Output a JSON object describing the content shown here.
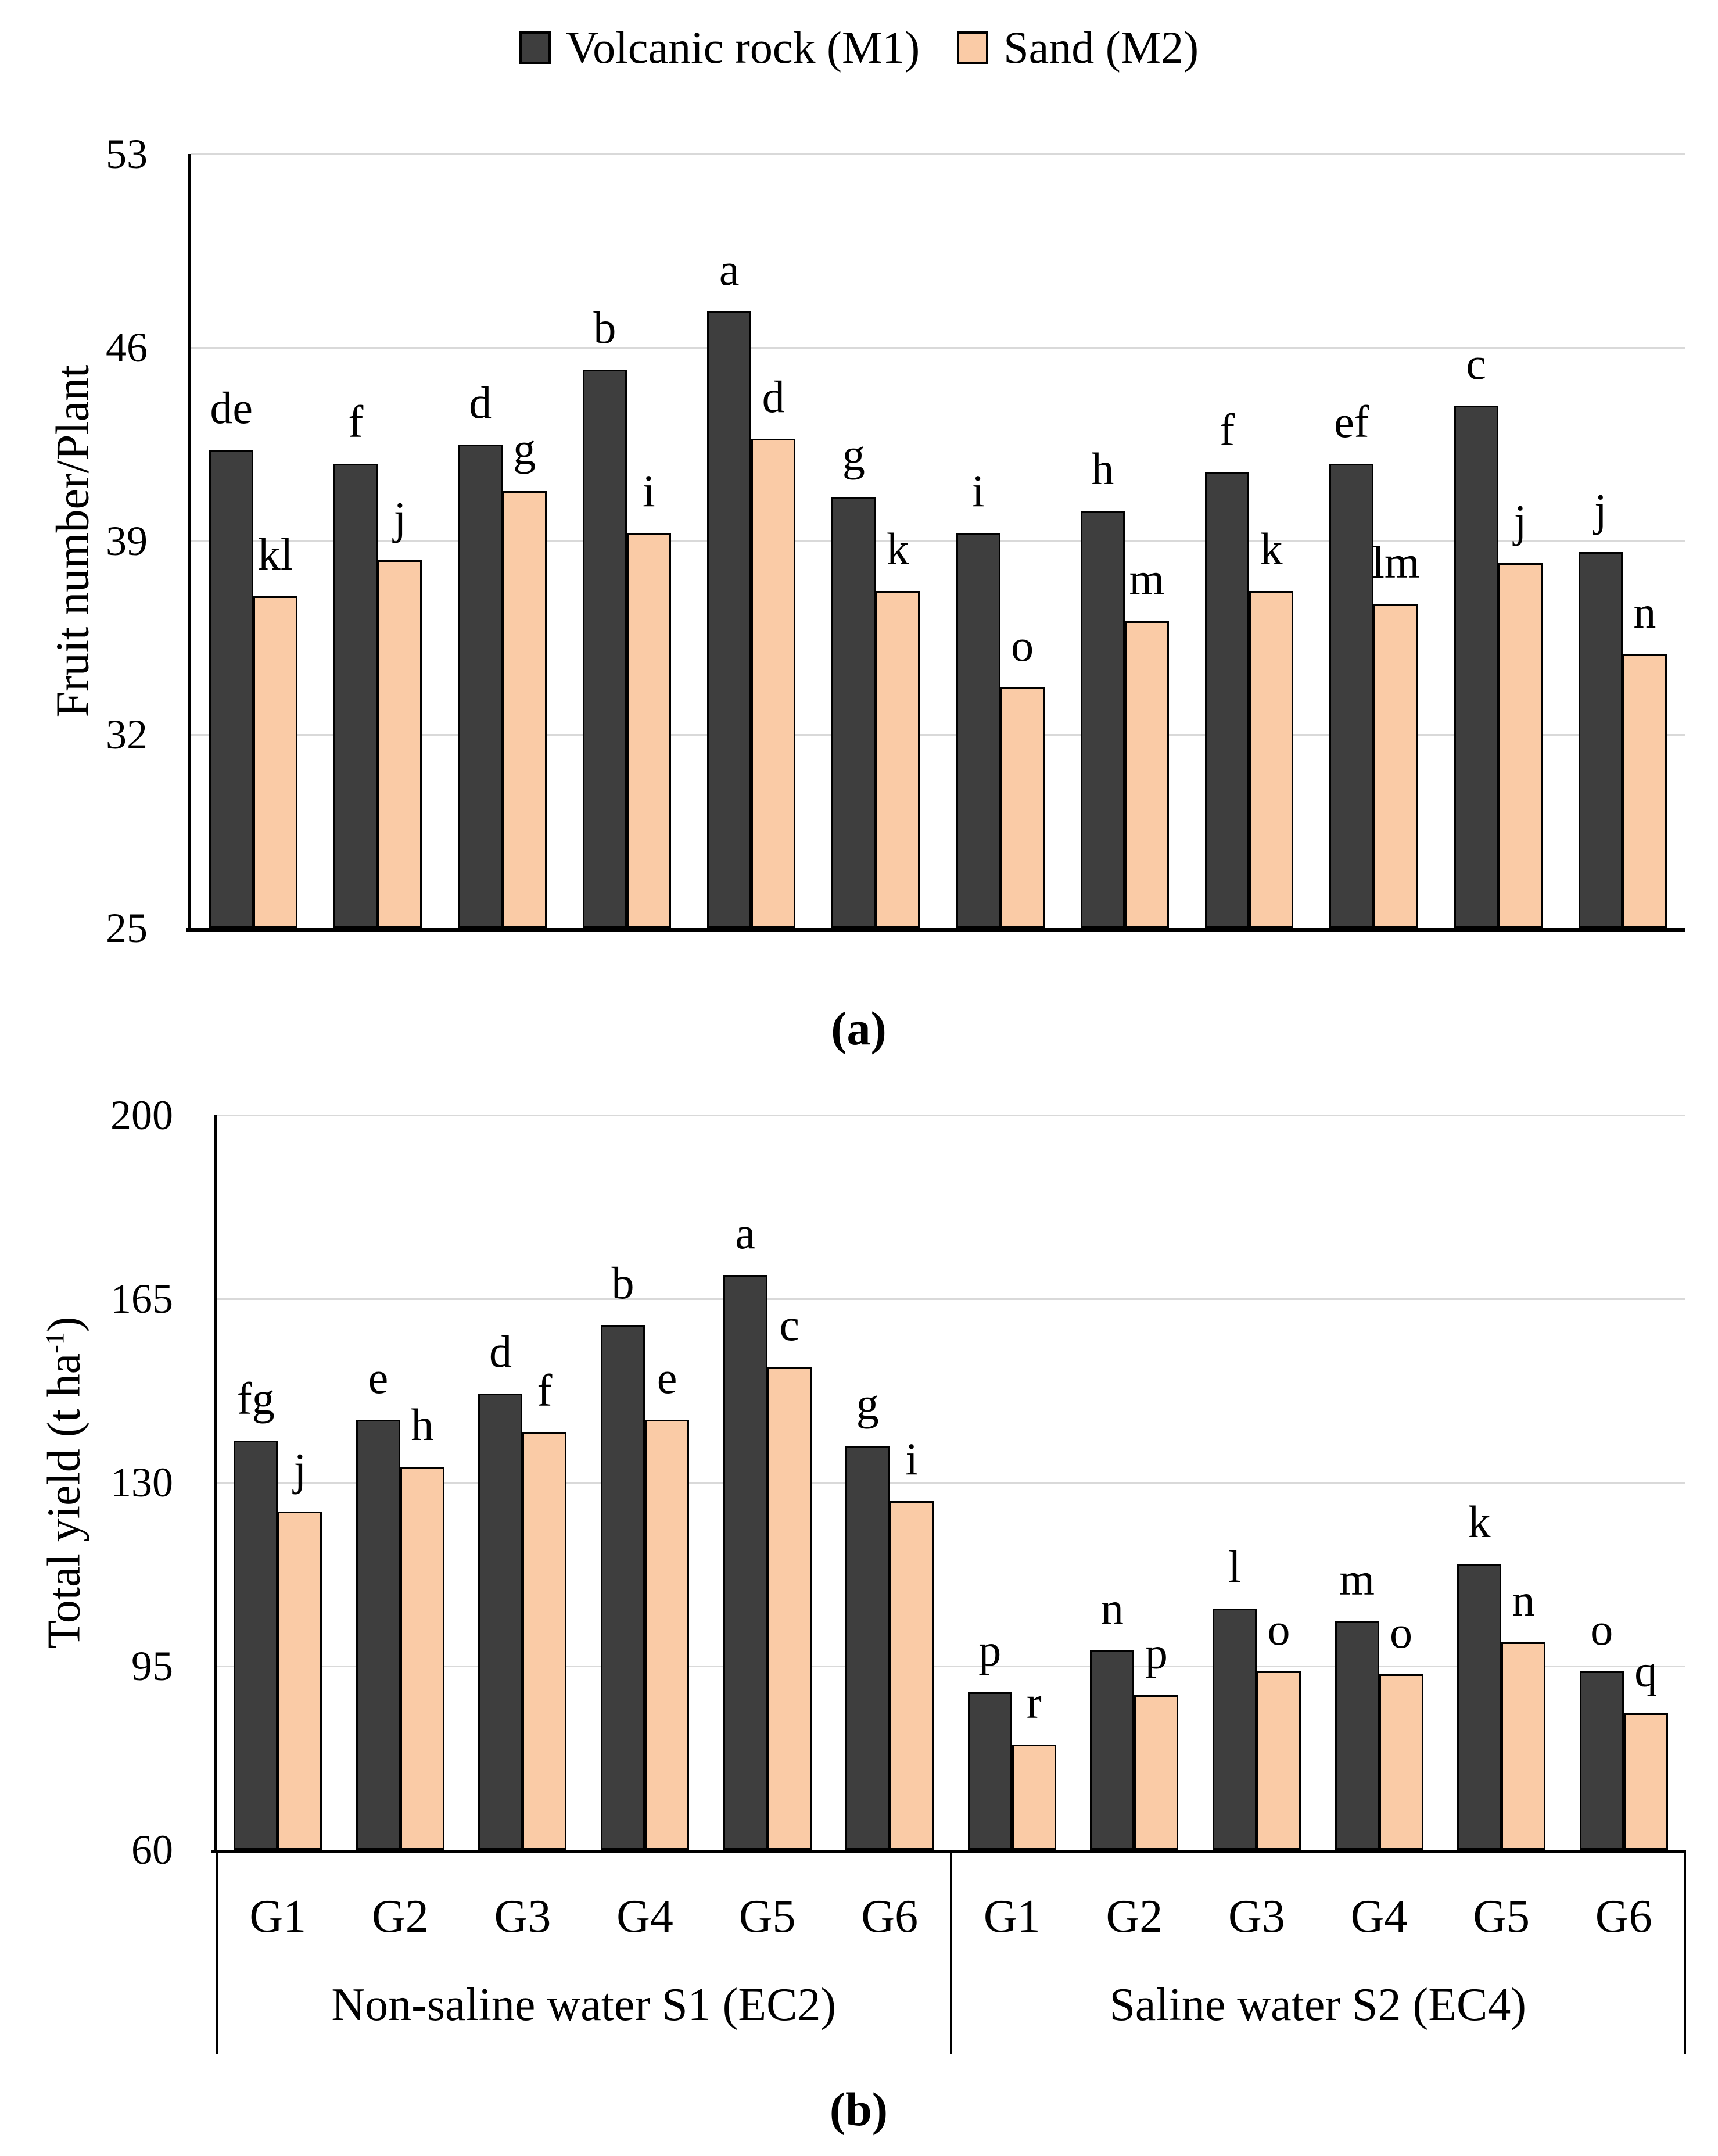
{
  "legend": {
    "items": [
      {
        "label": "Volcanic rock (M1)",
        "swatch_color": "#3E3E3E"
      },
      {
        "label": "Sand (M2)",
        "swatch_color": "#FACBA6"
      }
    ]
  },
  "captions": {
    "a": "(a)",
    "b": "(b)"
  },
  "colors": {
    "series_volcanic_rock": "#3E3E3E",
    "series_sand": "#FACBA6",
    "bar_border": "#000000",
    "gridline": "#D9D9D9",
    "axis": "#000000",
    "background": "#FFFFFF"
  },
  "chart_data": [
    {
      "type": "bar",
      "panel": "a",
      "title": "",
      "ylabel": {
        "prefix": "Fruit number/Plant",
        "sup": "",
        "suffix": ""
      },
      "ylim": [
        25,
        53
      ],
      "yticks": [
        25,
        32,
        39,
        46,
        53
      ],
      "grid": true,
      "legend_position": "top",
      "x_axis_labels_shown": false,
      "categories": [
        "G1",
        "G2",
        "G3",
        "G4",
        "G5",
        "G6",
        "G1",
        "G2",
        "G3",
        "G4",
        "G5",
        "G6"
      ],
      "group_labels": [],
      "series": [
        {
          "name": "Volcanic rock (M1)",
          "color": "#3E3E3E",
          "values": [
            42.3,
            41.8,
            42.5,
            45.2,
            47.3,
            40.6,
            39.3,
            40.1,
            41.5,
            41.8,
            43.9,
            38.6
          ],
          "letters": [
            "de",
            "f",
            "d",
            "b",
            "a",
            "g",
            "i",
            "h",
            "f",
            "ef",
            "c",
            "j"
          ]
        },
        {
          "name": "Sand (M2)",
          "color": "#FACBA6",
          "values": [
            37.0,
            38.3,
            40.8,
            39.3,
            42.7,
            37.2,
            33.7,
            36.1,
            37.2,
            36.7,
            38.2,
            34.9
          ],
          "letters": [
            "kl",
            "j",
            "g",
            "i",
            "d",
            "k",
            "o",
            "m",
            "k",
            "lm",
            "j",
            "n"
          ]
        }
      ]
    },
    {
      "type": "bar",
      "panel": "b",
      "title": "",
      "ylabel": {
        "prefix": "Total yield (t ha",
        "sup": "-1",
        "suffix": ")"
      },
      "ylim": [
        60,
        200
      ],
      "yticks": [
        60,
        95,
        130,
        165,
        200
      ],
      "grid": true,
      "legend_position": "top",
      "x_axis_labels_shown": true,
      "categories": [
        "G1",
        "G2",
        "G3",
        "G4",
        "G5",
        "G6",
        "G1",
        "G2",
        "G3",
        "G4",
        "G5",
        "G6"
      ],
      "group_labels": [
        "Non-saline water S1 (EC2)",
        "Saline water S2 (EC4)"
      ],
      "series": [
        {
          "name": "Volcanic rock (M1)",
          "color": "#3E3E3E",
          "values": [
            138,
            142,
            147,
            160,
            169.5,
            137,
            90,
            98,
            106,
            103.5,
            114.5,
            94
          ],
          "letters": [
            "fg",
            "e",
            "d",
            "b",
            "a",
            "g",
            "p",
            "n",
            "l",
            "m",
            "k",
            "o"
          ]
        },
        {
          "name": "Sand (M2)",
          "color": "#FACBA6",
          "values": [
            124.5,
            133,
            139.5,
            142,
            152,
            126.5,
            80,
            89.5,
            94,
            93.5,
            99.5,
            86
          ],
          "letters": [
            "j",
            "h",
            "f",
            "e",
            "c",
            "i",
            "r",
            "p",
            "o",
            "o",
            "n",
            "q"
          ]
        }
      ]
    }
  ]
}
